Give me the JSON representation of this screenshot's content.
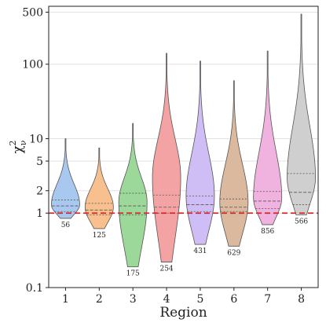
{
  "chart_data": {
    "type": "violin",
    "xlabel": "Region",
    "ylabel_base": "χ",
    "ylabel_sub": "ν",
    "ylabel_sup": "2",
    "yscale": "log",
    "ylim": [
      0.1,
      600
    ],
    "y_ticks": [
      0.1,
      1,
      2,
      5,
      10,
      100,
      500
    ],
    "y_tick_labels": [
      "0.1",
      "1",
      "2",
      "5",
      "10",
      "100",
      "500"
    ],
    "categories": [
      "1",
      "2",
      "3",
      "4",
      "5",
      "6",
      "7",
      "8"
    ],
    "grid": true,
    "reference_line": {
      "y": 1.0,
      "color": "#d62728",
      "style": "dashed"
    },
    "violins": [
      {
        "region": "1",
        "n_label": "56",
        "color": "#a8c8ef",
        "min": 0.85,
        "max": 10,
        "q1": 1.05,
        "median": 1.25,
        "q3": 1.5,
        "peak": 1.3,
        "wmax": 0.42
      },
      {
        "region": "2",
        "n_label": "125",
        "color": "#f8bf8f",
        "min": 0.62,
        "max": 7.5,
        "q1": 0.95,
        "median": 1.1,
        "q3": 1.35,
        "peak": 1.2,
        "wmax": 0.42
      },
      {
        "region": "3",
        "n_label": "175",
        "color": "#9bd89a",
        "min": 0.19,
        "max": 16,
        "q1": 0.95,
        "median": 1.25,
        "q3": 1.85,
        "peak": 1.4,
        "wmax": 0.42
      },
      {
        "region": "4",
        "n_label": "254",
        "color": "#f3a3a4",
        "min": 0.22,
        "max": 140,
        "q1": 1.0,
        "median": 1.2,
        "q3": 1.75,
        "peak": 3.0,
        "wmax": 0.42
      },
      {
        "region": "5",
        "n_label": "431",
        "color": "#cfbef6",
        "min": 0.38,
        "max": 110,
        "q1": 1.05,
        "median": 1.3,
        "q3": 1.7,
        "peak": 1.7,
        "wmax": 0.42
      },
      {
        "region": "6",
        "n_label": "629",
        "color": "#dbb99e",
        "min": 0.36,
        "max": 60,
        "q1": 1.05,
        "median": 1.2,
        "q3": 1.55,
        "peak": 1.4,
        "wmax": 0.42
      },
      {
        "region": "7",
        "n_label": "856",
        "color": "#f0b2de",
        "min": 0.7,
        "max": 150,
        "q1": 1.15,
        "median": 1.45,
        "q3": 1.95,
        "peak": 1.6,
        "wmax": 0.42
      },
      {
        "region": "8",
        "n_label": "566",
        "color": "#cfcfcf",
        "min": 0.95,
        "max": 470,
        "q1": 1.3,
        "median": 1.9,
        "q3": 3.4,
        "peak": 3.0,
        "wmax": 0.42
      }
    ]
  }
}
